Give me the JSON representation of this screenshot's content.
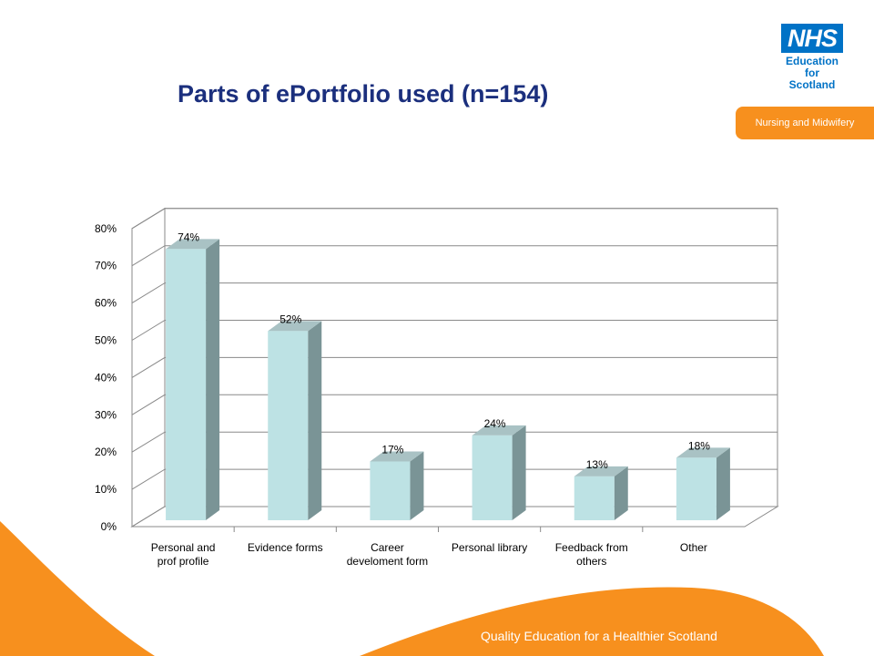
{
  "brand": {
    "logo_mark": "NHS",
    "logo_lines": [
      "Education",
      "for",
      "Scotland"
    ],
    "tab_label": "Nursing and Midwifery",
    "tagline": "Quality Education for a Healthier Scotland",
    "colors": {
      "navy": "#1b2f7d",
      "nhs_blue": "#0072c6",
      "orange": "#f7901e",
      "bar_face": "#bde2e4",
      "bar_side": "#7a9496"
    }
  },
  "chart_data": {
    "type": "bar",
    "title": "Parts of ePortfolio used (n=154)",
    "categories": [
      [
        "Personal and",
        "prof profile"
      ],
      [
        "Evidence forms"
      ],
      [
        "Career",
        "develoment form"
      ],
      [
        "Personal library"
      ],
      [
        "Feedback from",
        "others"
      ],
      [
        "Other"
      ]
    ],
    "values": [
      74,
      52,
      17,
      24,
      13,
      18
    ],
    "data_labels": [
      "74%",
      "52%",
      "17%",
      "24%",
      "13%",
      "18%"
    ],
    "y_ticks": [
      "0%",
      "10%",
      "20%",
      "30%",
      "40%",
      "50%",
      "60%",
      "70%",
      "80%"
    ],
    "ylim": [
      0,
      80
    ],
    "grid": true,
    "style": "3d-column"
  }
}
